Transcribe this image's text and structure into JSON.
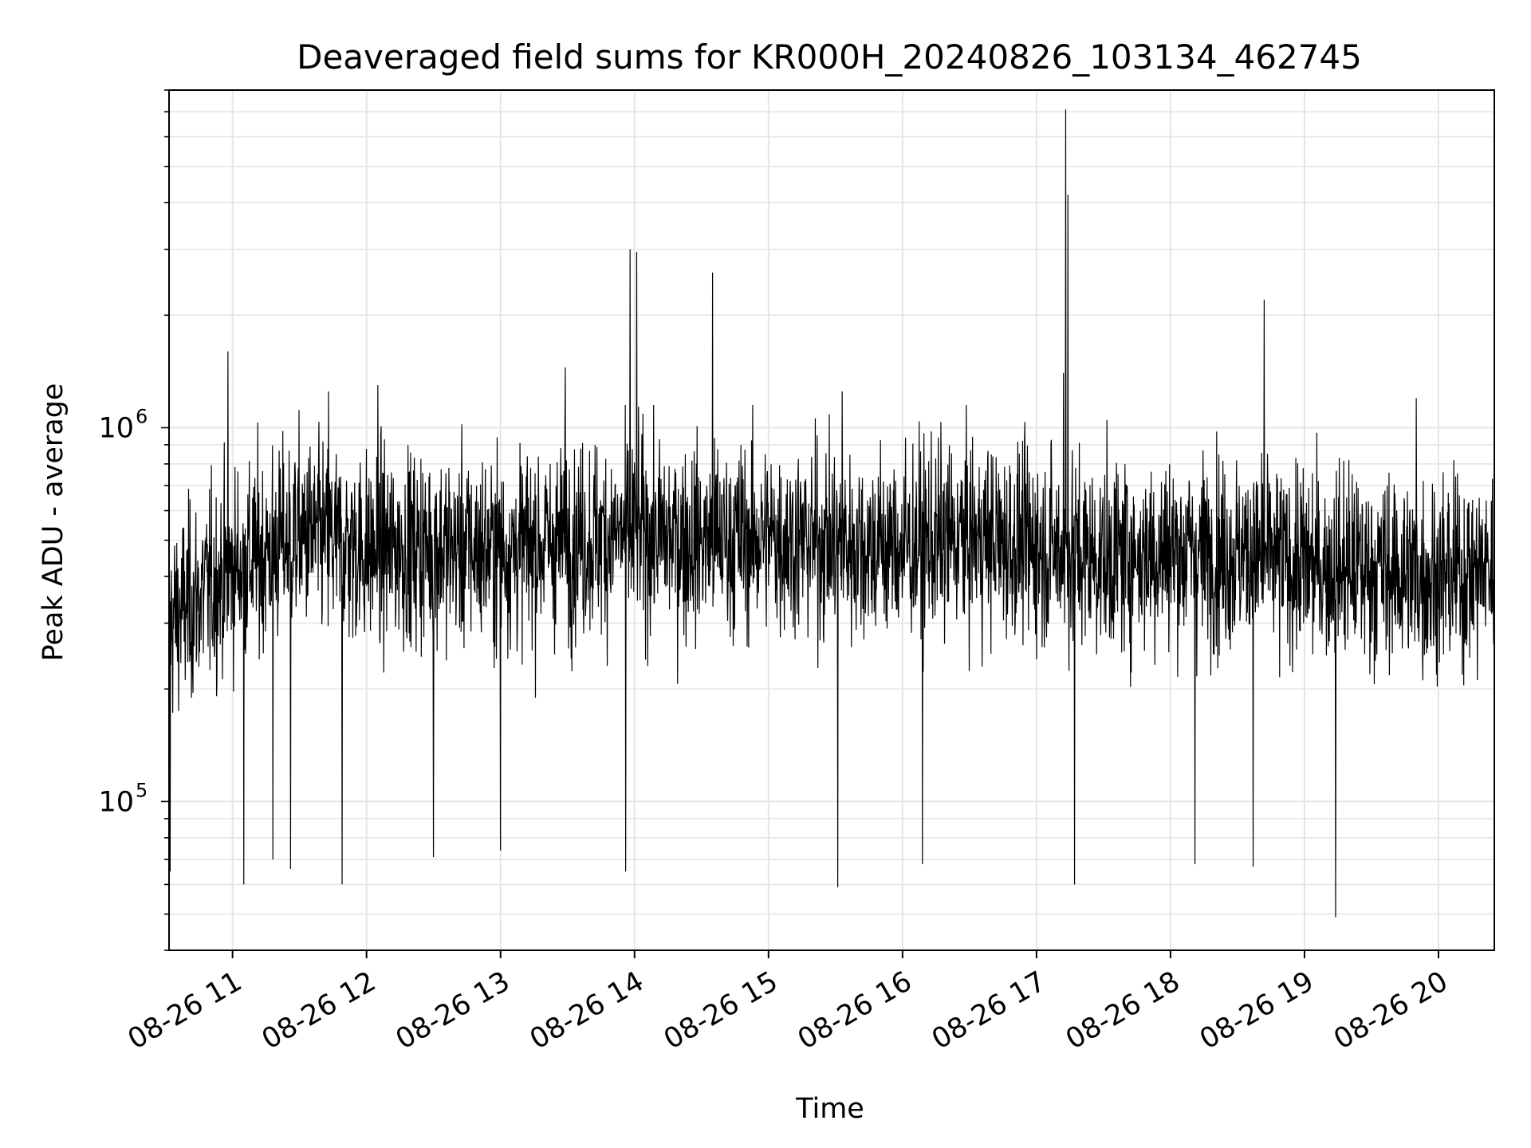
{
  "chart_data": {
    "type": "line",
    "title": "Deaveraged field sums for KR000H_20240826_103134_462745",
    "xlabel": "Time",
    "ylabel": "Peak ADU - average",
    "x_range": [
      "2024-08-26T10:31:34",
      "2024-08-26T20:25:00"
    ],
    "ylim": [
      40000,
      8000000
    ],
    "y_scale": "log",
    "grid": true,
    "line_color": "#000000",
    "grid_color": "#e5e5e5",
    "x_ticks": [
      {
        "value": "2024-08-26T11:00",
        "label": "08-26 11"
      },
      {
        "value": "2024-08-26T12:00",
        "label": "08-26 12"
      },
      {
        "value": "2024-08-26T13:00",
        "label": "08-26 13"
      },
      {
        "value": "2024-08-26T14:00",
        "label": "08-26 14"
      },
      {
        "value": "2024-08-26T15:00",
        "label": "08-26 15"
      },
      {
        "value": "2024-08-26T16:00",
        "label": "08-26 16"
      },
      {
        "value": "2024-08-26T17:00",
        "label": "08-26 17"
      },
      {
        "value": "2024-08-26T18:00",
        "label": "08-26 18"
      },
      {
        "value": "2024-08-26T19:00",
        "label": "08-26 19"
      },
      {
        "value": "2024-08-26T20:00",
        "label": "08-26 20"
      }
    ],
    "y_ticks": [
      {
        "value": 100000,
        "base": "10",
        "exp": "5"
      },
      {
        "value": 1000000,
        "base": "10",
        "exp": "6"
      }
    ],
    "series": [
      {
        "baseline_by_hour": [
          {
            "t": "2024-08-26T10:31",
            "y": 300000
          },
          {
            "t": "2024-08-26T11:00",
            "y": 420000
          },
          {
            "t": "2024-08-26T11:30",
            "y": 520000
          },
          {
            "t": "2024-08-26T12:00",
            "y": 470000
          },
          {
            "t": "2024-08-26T12:30",
            "y": 480000
          },
          {
            "t": "2024-08-26T13:00",
            "y": 470000
          },
          {
            "t": "2024-08-26T13:30",
            "y": 500000
          },
          {
            "t": "2024-08-26T14:00",
            "y": 520000
          },
          {
            "t": "2024-08-26T14:30",
            "y": 500000
          },
          {
            "t": "2024-08-26T15:00",
            "y": 510000
          },
          {
            "t": "2024-08-26T15:30",
            "y": 490000
          },
          {
            "t": "2024-08-26T16:00",
            "y": 480000
          },
          {
            "t": "2024-08-26T16:30",
            "y": 510000
          },
          {
            "t": "2024-08-26T17:00",
            "y": 480000
          },
          {
            "t": "2024-08-26T17:30",
            "y": 450000
          },
          {
            "t": "2024-08-26T18:00",
            "y": 470000
          },
          {
            "t": "2024-08-26T18:30",
            "y": 460000
          },
          {
            "t": "2024-08-26T19:00",
            "y": 430000
          },
          {
            "t": "2024-08-26T19:30",
            "y": 420000
          },
          {
            "t": "2024-08-26T20:00",
            "y": 400000
          },
          {
            "t": "2024-08-26T20:25",
            "y": 420000
          }
        ],
        "peaks": [
          {
            "t": "2024-08-26T10:58",
            "y": 1600000
          },
          {
            "t": "2024-08-26T13:58",
            "y": 3000000
          },
          {
            "t": "2024-08-26T14:01",
            "y": 2950000
          },
          {
            "t": "2024-08-26T14:35",
            "y": 2600000
          },
          {
            "t": "2024-08-26T13:29",
            "y": 1450000
          },
          {
            "t": "2024-08-26T17:13",
            "y": 7100000
          },
          {
            "t": "2024-08-26T17:14",
            "y": 4200000
          },
          {
            "t": "2024-08-26T17:12",
            "y": 1400000
          },
          {
            "t": "2024-08-26T18:42",
            "y": 2200000
          },
          {
            "t": "2024-08-26T11:43",
            "y": 1250000
          },
          {
            "t": "2024-08-26T12:05",
            "y": 1300000
          },
          {
            "t": "2024-08-26T19:50",
            "y": 1200000
          },
          {
            "t": "2024-08-26T15:33",
            "y": 1250000
          }
        ],
        "dips": [
          {
            "t": "2024-08-26T10:32",
            "y": 65000
          },
          {
            "t": "2024-08-26T11:05",
            "y": 60000
          },
          {
            "t": "2024-08-26T11:18",
            "y": 70000
          },
          {
            "t": "2024-08-26T11:26",
            "y": 66000
          },
          {
            "t": "2024-08-26T11:49",
            "y": 60000
          },
          {
            "t": "2024-08-26T12:30",
            "y": 71000
          },
          {
            "t": "2024-08-26T13:00",
            "y": 74000
          },
          {
            "t": "2024-08-26T13:56",
            "y": 65000
          },
          {
            "t": "2024-08-26T15:31",
            "y": 59000
          },
          {
            "t": "2024-08-26T16:09",
            "y": 68000
          },
          {
            "t": "2024-08-26T17:17",
            "y": 60000
          },
          {
            "t": "2024-08-26T18:11",
            "y": 68000
          },
          {
            "t": "2024-08-26T18:37",
            "y": 67000
          },
          {
            "t": "2024-08-26T19:14",
            "y": 49000
          }
        ]
      }
    ]
  }
}
